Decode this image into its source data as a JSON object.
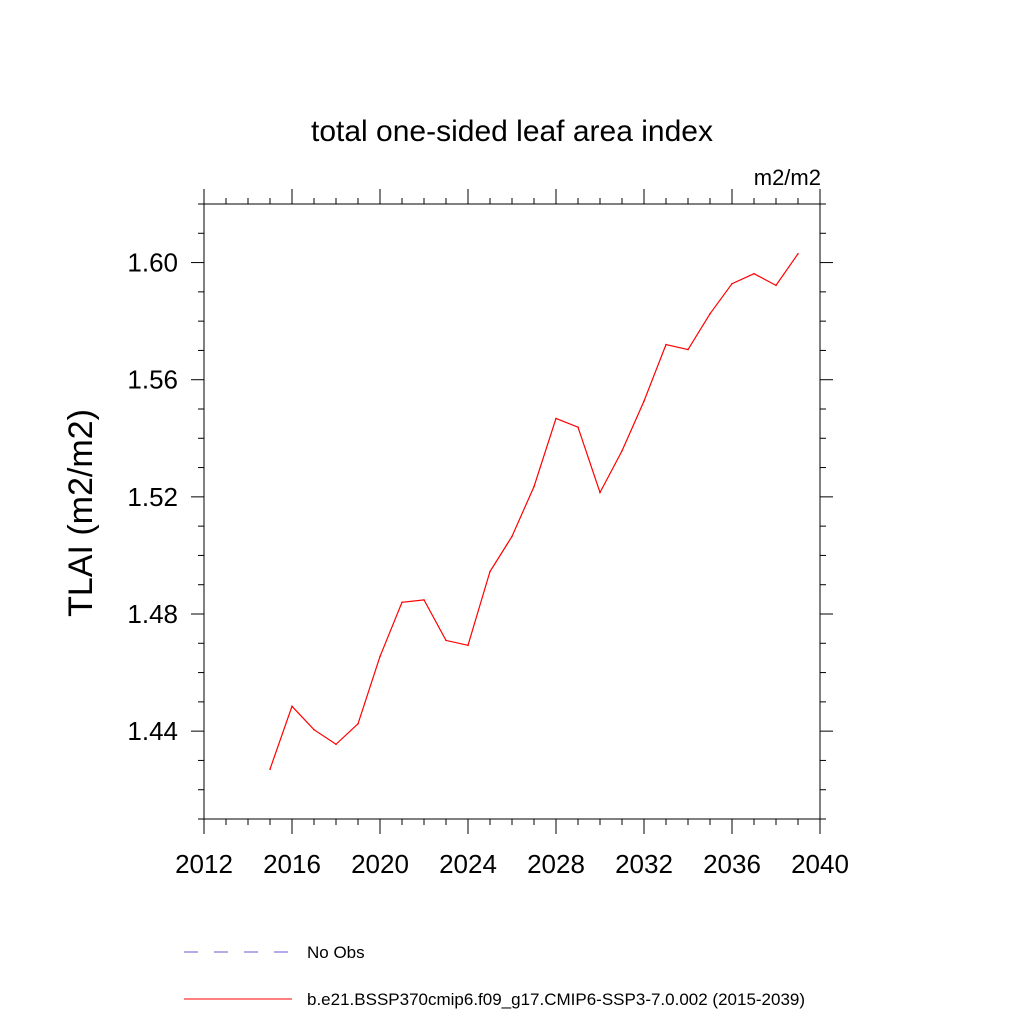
{
  "chart_data": {
    "type": "line",
    "title": "total one-sided leaf area index",
    "units": "m2/m2",
    "xlabel": "",
    "ylabel": "TLAI  (m2/m2)",
    "xlim": [
      2012,
      2040
    ],
    "ylim": [
      1.41,
      1.62
    ],
    "xticks": [
      2012,
      2016,
      2020,
      2024,
      2028,
      2032,
      2036,
      2040
    ],
    "xtick_labels": [
      "2012",
      "2016",
      "2020",
      "2024",
      "2028",
      "2032",
      "2036",
      "2040"
    ],
    "yticks": [
      1.44,
      1.48,
      1.52,
      1.56,
      1.6
    ],
    "ytick_labels": [
      "1.44",
      "1.48",
      "1.52",
      "1.56",
      "1.60"
    ],
    "grid": false,
    "series": [
      {
        "name": "b.e21.BSSP370cmip6.f09_g17.CMIP6-SSP3-7.0.002 (2015-2039)",
        "color": "#ff0000",
        "style": "solid",
        "x": [
          2015,
          2016,
          2017,
          2018,
          2019,
          2020,
          2021,
          2022,
          2023,
          2024,
          2025,
          2026,
          2027,
          2028,
          2029,
          2030,
          2031,
          2032,
          2033,
          2034,
          2035,
          2036,
          2037,
          2038,
          2039
        ],
        "y": [
          1.427,
          1.4485,
          1.4405,
          1.4355,
          1.4425,
          1.4655,
          1.484,
          1.4848,
          1.471,
          1.4693,
          1.4945,
          1.5065,
          1.5235,
          1.5468,
          1.5438,
          1.5215,
          1.5357,
          1.5527,
          1.572,
          1.5703,
          1.5825,
          1.5928,
          1.5962,
          1.5922,
          1.603
        ]
      }
    ],
    "legend": [
      {
        "label": "No Obs",
        "color": "#6a5acd",
        "style": "dashed"
      },
      {
        "label": "b.e21.BSSP370cmip6.f09_g17.CMIP6-SSP3-7.0.002 (2015-2039)",
        "color": "#ff0000",
        "style": "solid"
      }
    ],
    "legend_position": "bottom"
  }
}
